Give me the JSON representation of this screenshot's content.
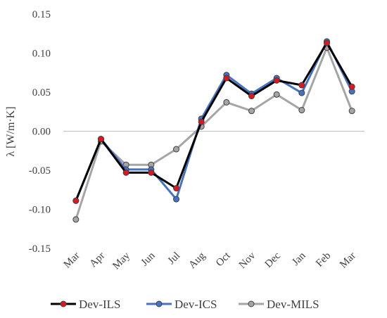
{
  "chart_data": {
    "type": "line",
    "title": "",
    "xlabel": "",
    "ylabel": "λ [W/m·K]",
    "ylim": [
      -0.15,
      0.15
    ],
    "yticks": [
      "0.15",
      "0.10",
      "0.05",
      "0.00",
      "-0.05",
      "-0.10",
      "-0.15"
    ],
    "categories": [
      "Mar",
      "Apr",
      "May",
      "Jun",
      "Jul",
      "Aug",
      "Oct",
      "Nov",
      "Dec",
      "Jan",
      "Feb",
      "Mar"
    ],
    "grid": false,
    "legend_position": "bottom",
    "series": [
      {
        "name": "Dev-ILS",
        "line_color": "#000000",
        "marker_color": "#e3141b",
        "values": [
          -0.089,
          -0.01,
          -0.053,
          -0.053,
          -0.073,
          0.012,
          0.068,
          0.045,
          0.065,
          0.059,
          0.113,
          0.057
        ]
      },
      {
        "name": "Dev-ICS",
        "line_color": "#4472c4",
        "marker_color": "#4472c4",
        "values": [
          -0.089,
          -0.01,
          -0.049,
          -0.049,
          -0.087,
          0.016,
          0.072,
          0.048,
          0.068,
          0.049,
          0.115,
          0.051
        ]
      },
      {
        "name": "Dev-MILS",
        "line_color": "#a5a5a5",
        "marker_color": "#a5a5a5",
        "values": [
          -0.113,
          -0.013,
          -0.043,
          -0.043,
          -0.023,
          0.006,
          0.037,
          0.026,
          0.047,
          0.027,
          0.107,
          0.026
        ]
      }
    ]
  }
}
